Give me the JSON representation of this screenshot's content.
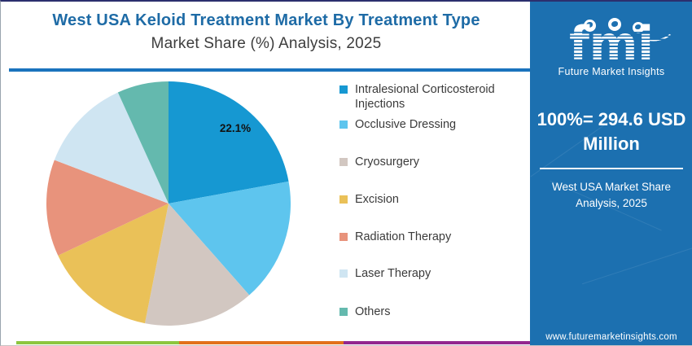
{
  "header": {
    "title": "West USA Keloid Treatment Market By Treatment Type",
    "subtitle": "Market Share (%) Analysis, 2025"
  },
  "chart_data": {
    "type": "pie",
    "title": "West USA Keloid Treatment Market By Treatment Type — Market Share (%) Analysis, 2025",
    "unit": "%",
    "direction": "clockwise",
    "start_angle_deg": 0,
    "legend_position": "right",
    "categories": [
      "Intralesional Corticosteroid Injections",
      "Occlusive Dressing",
      "Cryosurgery",
      "Excision",
      "Radiation Therapy",
      "Laser Therapy",
      "Others"
    ],
    "values": [
      22.1,
      16.4,
      14.6,
      14.9,
      12.8,
      12.4,
      6.8
    ],
    "colors": [
      "#1698d2",
      "#5ec5ee",
      "#d2c7c1",
      "#eac158",
      "#e8937c",
      "#cfe5f2",
      "#64b9ae"
    ],
    "displayed_label": {
      "category": "Intralesional Corticosteroid Injections",
      "text": "22.1%"
    }
  },
  "sidebar": {
    "bg_color": "#1c70b0",
    "logo": {
      "word": "fmi",
      "name": "Future Market Insights"
    },
    "highlight": "100%= 294.6 USD Million",
    "caption": "West USA Market Share Analysis, 2025",
    "website": "www.futuremarketinsights.com"
  },
  "footer_bars": {
    "colors": [
      "#8dc63f",
      "#e2711c",
      "#93278f"
    ]
  },
  "accent_colors": {
    "title_blue": "#1e6ba6",
    "rule_blue": "#1a73bd"
  }
}
